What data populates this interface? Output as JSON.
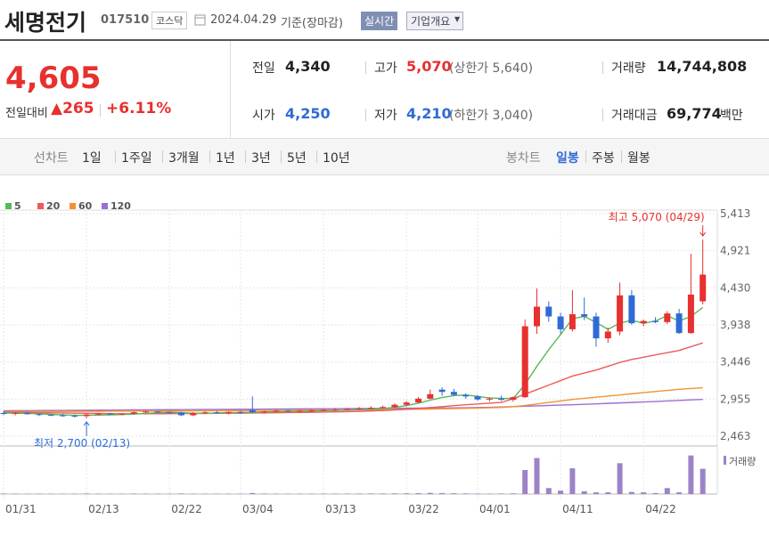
{
  "header": {
    "name": "세명전기",
    "code": "017510",
    "market": "코스닥",
    "date": "2024.04.29",
    "basis": "기준(장마감)",
    "realtime": "실시간",
    "company_info": "기업개요"
  },
  "quote": {
    "price": "4,605",
    "change_label": "전일대비",
    "change": "265",
    "rate": "+6.11%"
  },
  "summary": [
    {
      "label": "전일",
      "value": "4,340"
    },
    {
      "label": "고가",
      "value": "5,070",
      "note": "(상한가 5,640)"
    },
    {
      "label": "거래량",
      "value": "14,744,808"
    },
    {
      "label": "시가",
      "value": "4,250"
    },
    {
      "label": "저가",
      "value": "4,210",
      "note": "(하한가 3,040)"
    },
    {
      "label": "거래대금",
      "value": "69,774",
      "unit": "백만"
    }
  ],
  "tabs": {
    "line_label": "선차트",
    "line": [
      "1일",
      "1주일",
      "3개월",
      "1년",
      "3년",
      "5년",
      "10년"
    ],
    "candle_label": "봉차트",
    "candle": [
      "일봉",
      "주봉",
      "월봉"
    ]
  },
  "chart_data": {
    "type": "candlestick",
    "categories": [
      "01/31",
      null,
      null,
      null,
      null,
      null,
      null,
      "02/13",
      null,
      null,
      null,
      null,
      null,
      null,
      "02/22",
      null,
      null,
      null,
      null,
      null,
      "03/04",
      null,
      null,
      null,
      null,
      null,
      null,
      "03/13",
      null,
      null,
      null,
      null,
      null,
      null,
      "03/22",
      null,
      null,
      null,
      null,
      null,
      "04/01",
      null,
      null,
      null,
      null,
      null,
      null,
      "04/11",
      null,
      null,
      null,
      null,
      null,
      null,
      "04/22",
      null,
      null,
      null,
      null,
      null
    ],
    "open": [
      2770,
      2760,
      2770,
      2755,
      2745,
      2740,
      2735,
      2730,
      2750,
      2760,
      2755,
      2760,
      2780,
      2790,
      2780,
      2775,
      2740,
      2770,
      2780,
      2770,
      2785,
      2810,
      2780,
      2790,
      2800,
      2795,
      2800,
      2805,
      2810,
      2815,
      2820,
      2830,
      2840,
      2850,
      2880,
      2910,
      2960,
      3080,
      3050,
      3010,
      2990,
      2950,
      2960,
      2945,
      2980,
      3920,
      4180,
      4050,
      3880,
      4080,
      4050,
      3760,
      3850,
      4330,
      3960,
      3990,
      3975,
      4090,
      3830,
      4250
    ],
    "high": [
      2790,
      2780,
      2790,
      2770,
      2760,
      2760,
      2750,
      2760,
      2770,
      2775,
      2770,
      2790,
      2800,
      2800,
      2790,
      2785,
      2780,
      2790,
      2800,
      2790,
      2800,
      2990,
      2800,
      2810,
      2815,
      2810,
      2820,
      2825,
      2830,
      2835,
      2850,
      2860,
      2870,
      2900,
      2930,
      2980,
      3080,
      3110,
      3090,
      3030,
      3010,
      2980,
      3000,
      2990,
      4010,
      4420,
      4250,
      4100,
      4400,
      4300,
      4100,
      3900,
      4500,
      4400,
      4010,
      4040,
      4120,
      4150,
      4880,
      5070
    ],
    "low": [
      2740,
      2740,
      2750,
      2730,
      2730,
      2720,
      2710,
      2700,
      2740,
      2745,
      2740,
      2750,
      2765,
      2770,
      2760,
      2730,
      2730,
      2755,
      2760,
      2750,
      2760,
      2770,
      2765,
      2780,
      2785,
      2780,
      2790,
      2795,
      2800,
      2805,
      2810,
      2820,
      2830,
      2840,
      2860,
      2900,
      2950,
      3000,
      3000,
      2960,
      2930,
      2920,
      2930,
      2920,
      2970,
      3820,
      3980,
      3820,
      3850,
      4000,
      3650,
      3700,
      3800,
      3940,
      3920,
      3960,
      3950,
      3820,
      3820,
      4210
    ],
    "close": [
      2760,
      2770,
      2755,
      2745,
      2740,
      2735,
      2730,
      2750,
      2760,
      2755,
      2760,
      2780,
      2790,
      2780,
      2775,
      2740,
      2770,
      2780,
      2770,
      2785,
      2770,
      2780,
      2790,
      2800,
      2795,
      2800,
      2805,
      2810,
      2815,
      2820,
      2830,
      2840,
      2850,
      2880,
      2910,
      2960,
      3020,
      3050,
      3010,
      2990,
      2950,
      2960,
      2945,
      2980,
      3920,
      4180,
      4050,
      3880,
      4080,
      4050,
      3760,
      3850,
      4330,
      3960,
      3990,
      3975,
      4090,
      3830,
      4340,
      4605
    ],
    "up_color": "#e8302e",
    "down_color": "#2f6bd6",
    "ylim": [
      2345,
      5460
    ],
    "yticks": [
      {
        "value": 5413,
        "label": "5,413"
      },
      {
        "value": 4921,
        "label": "4,921"
      },
      {
        "value": 4430,
        "label": "4,430"
      },
      {
        "value": 3938,
        "label": "3,938"
      },
      {
        "value": 3446,
        "label": "3,446"
      },
      {
        "value": 2955,
        "label": "2,955"
      },
      {
        "value": 2463,
        "label": "2,463"
      }
    ],
    "moving_averages": [
      {
        "name": "5",
        "color": "#5cb85c",
        "values": [
          2770,
          2768,
          2765,
          2760,
          2752,
          2745,
          2740,
          2740,
          2742,
          2745,
          2750,
          2756,
          2765,
          2775,
          2780,
          2775,
          2768,
          2765,
          2770,
          2775,
          2778,
          2780,
          2785,
          2788,
          2790,
          2792,
          2795,
          2800,
          2805,
          2810,
          2815,
          2820,
          2830,
          2845,
          2870,
          2900,
          2940,
          2975,
          3000,
          3010,
          2990,
          2970,
          2965,
          2960,
          3150,
          3390,
          3610,
          3810,
          4020,
          4050,
          3970,
          3880,
          3960,
          4000,
          3960,
          3990,
          4060,
          3990,
          4050,
          4170
        ]
      },
      {
        "name": "20",
        "color": "#ec5b5b",
        "values": [
          2780,
          2778,
          2776,
          2774,
          2772,
          2770,
          2768,
          2766,
          2764,
          2762,
          2760,
          2760,
          2760,
          2761,
          2762,
          2763,
          2764,
          2765,
          2766,
          2767,
          2768,
          2770,
          2772,
          2774,
          2776,
          2778,
          2780,
          2782,
          2785,
          2788,
          2792,
          2797,
          2803,
          2810,
          2820,
          2830,
          2842,
          2855,
          2868,
          2880,
          2890,
          2900,
          2910,
          2960,
          3020,
          3080,
          3140,
          3200,
          3260,
          3300,
          3340,
          3390,
          3440,
          3480,
          3510,
          3540,
          3570,
          3600,
          3650,
          3700
        ]
      },
      {
        "name": "60",
        "color": "#f39235",
        "values": [
          2790,
          2790,
          2790,
          2791,
          2791,
          2792,
          2792,
          2793,
          2793,
          2794,
          2794,
          2795,
          2795,
          2796,
          2797,
          2797,
          2798,
          2799,
          2800,
          2801,
          2802,
          2803,
          2804,
          2805,
          2806,
          2807,
          2808,
          2809,
          2810,
          2811,
          2812,
          2813,
          2815,
          2817,
          2819,
          2821,
          2823,
          2826,
          2829,
          2832,
          2835,
          2840,
          2845,
          2855,
          2870,
          2890,
          2910,
          2930,
          2950,
          2965,
          2980,
          2995,
          3010,
          3025,
          3040,
          3055,
          3070,
          3085,
          3095,
          3105
        ]
      },
      {
        "name": "120",
        "color": "#9d6fd3",
        "values": [
          2800,
          2801,
          2802,
          2803,
          2804,
          2805,
          2806,
          2807,
          2808,
          2809,
          2810,
          2811,
          2812,
          2813,
          2814,
          2815,
          2816,
          2817,
          2818,
          2819,
          2820,
          2821,
          2822,
          2823,
          2824,
          2825,
          2826,
          2827,
          2828,
          2829,
          2830,
          2831,
          2832,
          2833,
          2834,
          2835,
          2836,
          2837,
          2838,
          2839,
          2842,
          2846,
          2850,
          2855,
          2860,
          2865,
          2870,
          2875,
          2880,
          2886,
          2892,
          2898,
          2904,
          2910,
          2916,
          2922,
          2930,
          2937,
          2944,
          2950
        ]
      }
    ],
    "volume": {
      "label": "거래량",
      "color": "#9c83c8",
      "ylim": [
        0,
        27000000
      ],
      "values": [
        300000,
        250000,
        200000,
        260000,
        220000,
        200000,
        240000,
        350000,
        260000,
        220000,
        200000,
        300000,
        280000,
        240000,
        230000,
        320000,
        260000,
        220000,
        210000,
        240000,
        250000,
        600000,
        300000,
        260000,
        240000,
        230000,
        250000,
        260000,
        270000,
        280000,
        300000,
        320000,
        340000,
        380000,
        420000,
        500000,
        700000,
        600000,
        450000,
        350000,
        300000,
        250000,
        300000,
        400000,
        14000000,
        21000000,
        3500000,
        2000000,
        15000000,
        1600000,
        1000000,
        1000000,
        18000000,
        1200000,
        1000000,
        600000,
        3500000,
        1000000,
        22500000,
        14744808
      ]
    },
    "annotations": {
      "high": "최고 5,070 (04/29)",
      "low": "최저 2,700 (02/13)"
    }
  }
}
